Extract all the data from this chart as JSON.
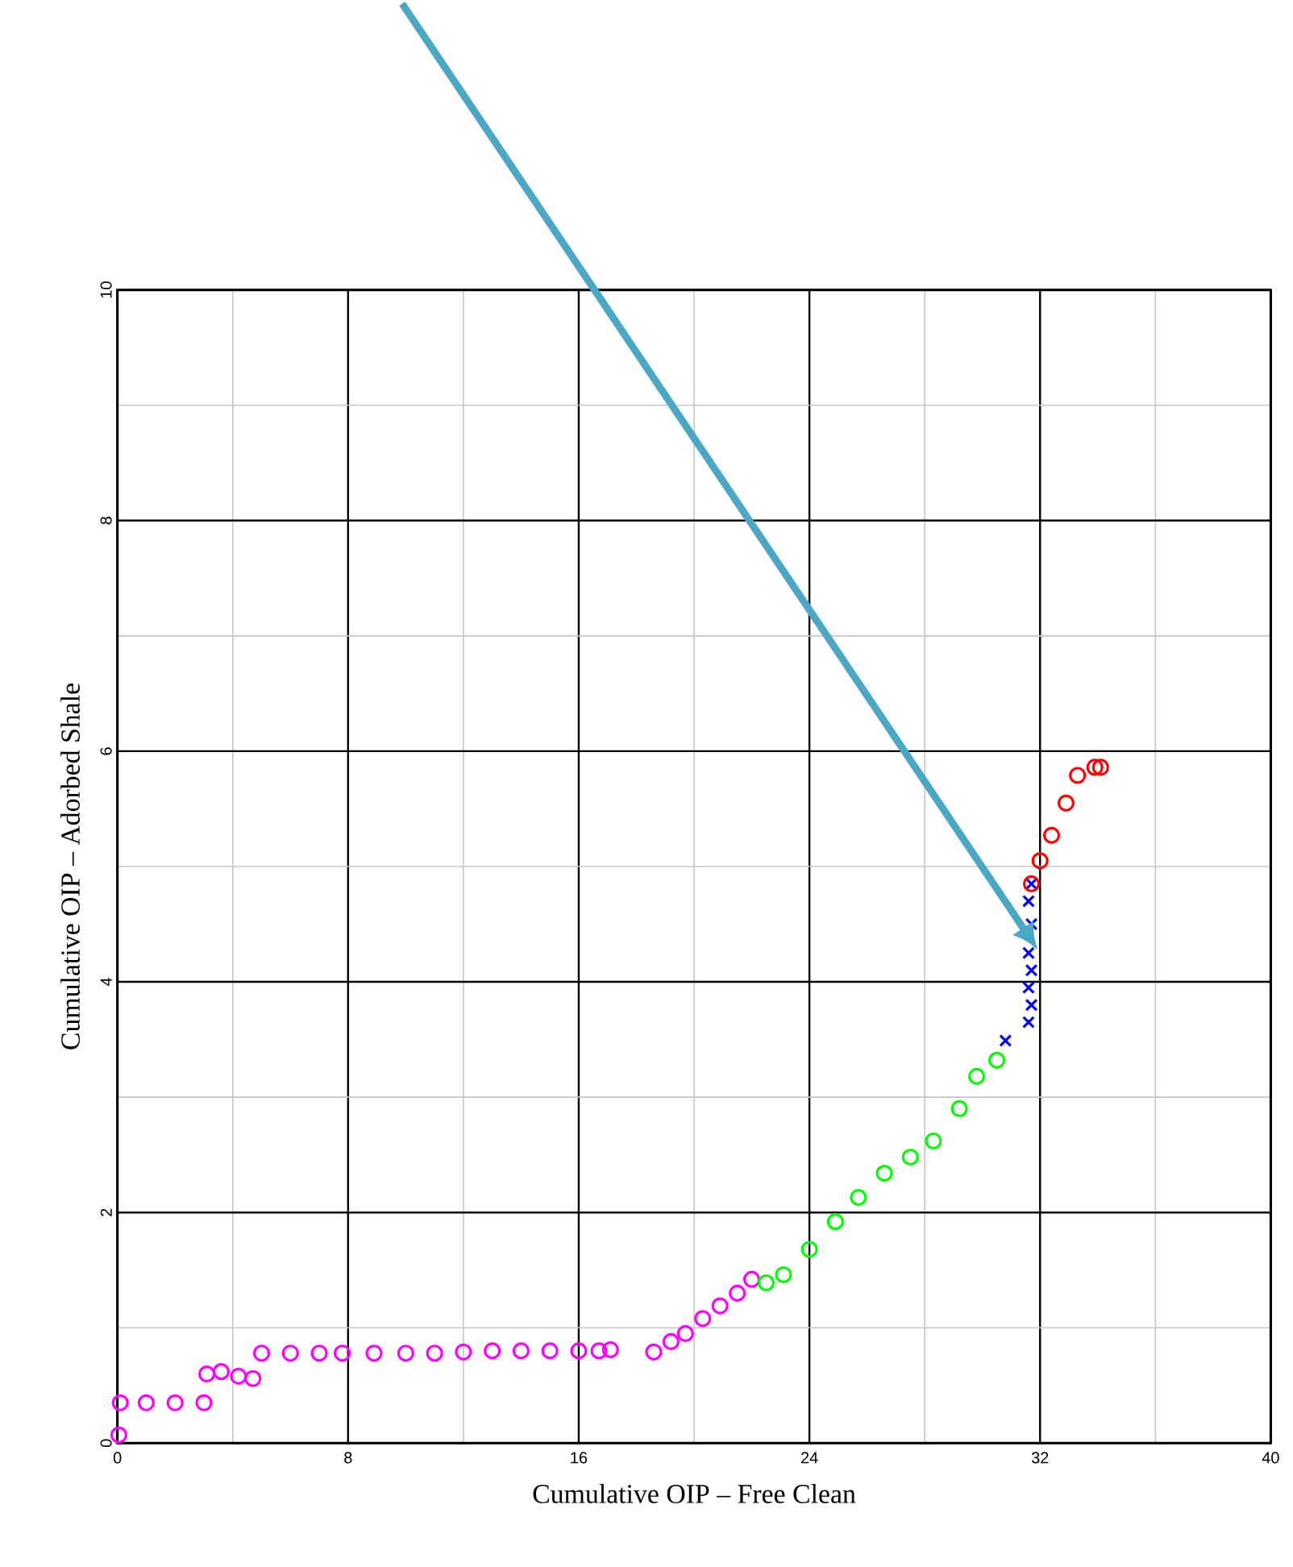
{
  "chart_data": {
    "type": "scatter",
    "xlabel": "Cumulative OIP – Free Clean",
    "ylabel": "Cumulative OIP – Adorbed Shale",
    "xlim": [
      0,
      40
    ],
    "ylim": [
      0,
      10
    ],
    "xticks": [
      0,
      8,
      16,
      24,
      32,
      40
    ],
    "yticks": [
      0,
      2,
      4,
      6,
      8,
      10
    ],
    "grid": true,
    "series": [
      {
        "color": "#ff00ff",
        "marker": "circle",
        "x": [
          0.05,
          0.1,
          1.0,
          2.0,
          3.0,
          3.1,
          3.6,
          4.2,
          4.7,
          5.0,
          6.0,
          7.0,
          7.8,
          8.9,
          10.0,
          11.0,
          12.0,
          13.0,
          14.0,
          15.0,
          16.0,
          16.7,
          17.1,
          18.6,
          19.2,
          19.7,
          20.3,
          20.9,
          21.5,
          22.0
        ],
        "values": [
          0.07,
          0.35,
          0.35,
          0.35,
          0.35,
          0.6,
          0.62,
          0.58,
          0.56,
          0.78,
          0.78,
          0.78,
          0.78,
          0.78,
          0.78,
          0.78,
          0.79,
          0.8,
          0.8,
          0.8,
          0.8,
          0.8,
          0.81,
          0.79,
          0.88,
          0.95,
          1.08,
          1.19,
          1.3,
          1.42
        ]
      },
      {
        "color": "#00ff00",
        "marker": "circle",
        "x": [
          22.5,
          23.1,
          24.0,
          24.9,
          25.7,
          26.6,
          27.5,
          28.3,
          29.2,
          29.8,
          30.5
        ],
        "values": [
          1.39,
          1.46,
          1.68,
          1.92,
          2.13,
          2.34,
          2.48,
          2.62,
          2.9,
          3.18,
          3.32
        ]
      },
      {
        "color": "#0000ff",
        "marker": "cross",
        "x": [
          30.8,
          31.6,
          31.7,
          31.6,
          31.7,
          31.6,
          31.7,
          31.6,
          31.7
        ],
        "values": [
          3.49,
          3.65,
          3.8,
          3.95,
          4.1,
          4.25,
          4.5,
          4.7,
          4.85
        ]
      },
      {
        "color": "#ff0000",
        "marker": "circle",
        "x": [
          31.7,
          32.0,
          32.4,
          32.9,
          33.3,
          33.9,
          34.1
        ],
        "values": [
          4.85,
          5.05,
          5.27,
          5.55,
          5.79,
          5.86,
          5.86
        ]
      }
    ]
  }
}
